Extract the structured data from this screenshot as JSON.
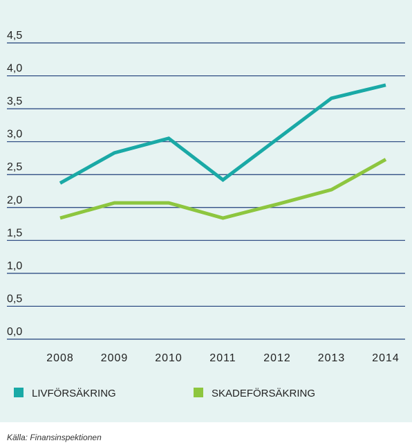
{
  "chart_data": {
    "type": "line",
    "categories": [
      "2008",
      "2009",
      "2010",
      "2011",
      "2012",
      "2013",
      "2014"
    ],
    "series": [
      {
        "name": "LIVFÖRSÄKRING",
        "color": "#1aa9a6",
        "values": [
          2.37,
          2.83,
          3.05,
          2.42,
          3.04,
          3.66,
          3.86
        ]
      },
      {
        "name": "SKADEFÖRSÄKRING",
        "color": "#8dc63f",
        "values": [
          1.84,
          2.07,
          2.07,
          1.84,
          2.05,
          2.27,
          2.73
        ]
      }
    ],
    "ylim": [
      0,
      4.5
    ],
    "yticks": [
      {
        "value": 0,
        "label": "0,0"
      },
      {
        "value": 0.5,
        "label": "0,5"
      },
      {
        "value": 1,
        "label": "1,0"
      },
      {
        "value": 1.5,
        "label": "1,5"
      },
      {
        "value": 2,
        "label": "2,0"
      },
      {
        "value": 2.5,
        "label": "2,5"
      },
      {
        "value": 3,
        "label": "3,0"
      },
      {
        "value": 3.5,
        "label": "3,5"
      },
      {
        "value": 4,
        "label": "4,0"
      },
      {
        "value": 4.5,
        "label": "4,5"
      }
    ],
    "grid": true,
    "grid_color": "#1f3e7a",
    "source": "Källa: Finansinspektionen"
  }
}
